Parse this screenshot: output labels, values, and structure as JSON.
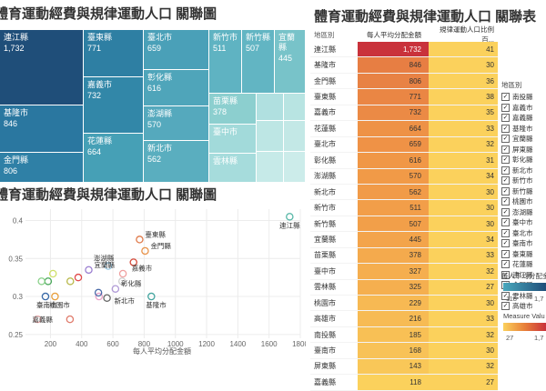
{
  "titles": {
    "treemap": "體育運動經費與規律運動人口 關聯圖",
    "scatter": "體育運動經費與規律運動人口 關聯圖",
    "table": "體育運動經費與規律運動人口 關聯表"
  },
  "treemap_cells": [
    {
      "name": "連江縣",
      "value": "1,732"
    },
    {
      "name": "臺東縣",
      "value": "771"
    },
    {
      "name": "臺北市",
      "value": "659"
    },
    {
      "name": "新竹市",
      "value": "511"
    },
    {
      "name": "新竹縣",
      "value": "507"
    },
    {
      "name": "宜蘭縣",
      "value": "445"
    },
    {
      "name": "嘉義市",
      "value": "732"
    },
    {
      "name": "彰化縣",
      "value": "616"
    },
    {
      "name": "基隆市",
      "value": "846"
    },
    {
      "name": "澎湖縣",
      "value": "570"
    },
    {
      "name": "苗栗縣",
      "value": "378"
    },
    {
      "name": "花蓮縣",
      "value": "664"
    },
    {
      "name": "臺中市",
      "value": ""
    },
    {
      "name": "新北市",
      "value": "562"
    },
    {
      "name": "雲林縣",
      "value": ""
    },
    {
      "name": "金門縣",
      "value": "806"
    }
  ],
  "table": {
    "headers": [
      "地區別",
      "每人平均分配金額",
      "規律運動人口比例百..."
    ],
    "rows": [
      {
        "region": "連江縣",
        "amount": "1,732",
        "ratio": "41"
      },
      {
        "region": "基隆市",
        "amount": "846",
        "ratio": "30"
      },
      {
        "region": "金門縣",
        "amount": "806",
        "ratio": "36"
      },
      {
        "region": "臺東縣",
        "amount": "771",
        "ratio": "38"
      },
      {
        "region": "嘉義市",
        "amount": "732",
        "ratio": "35"
      },
      {
        "region": "花蓮縣",
        "amount": "664",
        "ratio": "33"
      },
      {
        "region": "臺北市",
        "amount": "659",
        "ratio": "32"
      },
      {
        "region": "彰化縣",
        "amount": "616",
        "ratio": "31"
      },
      {
        "region": "澎湖縣",
        "amount": "570",
        "ratio": "34"
      },
      {
        "region": "新北市",
        "amount": "562",
        "ratio": "30"
      },
      {
        "region": "新竹市",
        "amount": "511",
        "ratio": "30"
      },
      {
        "region": "新竹縣",
        "amount": "507",
        "ratio": "30"
      },
      {
        "region": "宜蘭縣",
        "amount": "445",
        "ratio": "34"
      },
      {
        "region": "苗栗縣",
        "amount": "378",
        "ratio": "33"
      },
      {
        "region": "臺中市",
        "amount": "327",
        "ratio": "32"
      },
      {
        "region": "雲林縣",
        "amount": "325",
        "ratio": "27"
      },
      {
        "region": "桃園市",
        "amount": "229",
        "ratio": "30"
      },
      {
        "region": "高雄市",
        "amount": "216",
        "ratio": "33"
      },
      {
        "region": "南投縣",
        "amount": "185",
        "ratio": "32"
      },
      {
        "region": "臺南市",
        "amount": "168",
        "ratio": "30"
      },
      {
        "region": "屏東縣",
        "amount": "143",
        "ratio": "32"
      },
      {
        "region": "嘉義縣",
        "amount": "118",
        "ratio": "27"
      }
    ]
  },
  "filter": {
    "title": "地區別",
    "items": [
      "南投縣",
      "嘉義市",
      "嘉義縣",
      "基隆市",
      "宜蘭縣",
      "屏東縣",
      "彰化縣",
      "新北市",
      "新竹市",
      "新竹縣",
      "桃園市",
      "澎湖縣",
      "臺中市",
      "臺北市",
      "臺南市",
      "臺東縣",
      "花蓮縣",
      "連江縣",
      "金門縣",
      "雲林縣",
      "高雄市"
    ]
  },
  "legend": {
    "amount_title": "每人平均分配金額",
    "amount_min": "118",
    "amount_max": "1,7",
    "measure_title": "Measure Valu",
    "measure_min": "27",
    "measure_max": "1,7"
  },
  "chart_data": {
    "type": "scatter",
    "title": "體育運動經費與規律運動人口 關聯圖",
    "xlabel": "每人平均分配金額",
    "ylabel": "",
    "xticks": [
      "200",
      "400",
      "600",
      "800",
      "1000",
      "1200",
      "1400",
      "1600",
      "1800"
    ],
    "yticks": [
      "0.25",
      "0.3",
      "0.35",
      "0.4"
    ],
    "xlim": [
      40,
      1800
    ],
    "ylim": [
      0.245,
      0.415
    ],
    "points": [
      {
        "label": "連江縣",
        "x": 1732,
        "y": 0.405,
        "color": "#55b6a6"
      },
      {
        "label": "基隆市",
        "x": 846,
        "y": 0.3,
        "color": "#46a6a0"
      },
      {
        "label": "金門縣",
        "x": 806,
        "y": 0.36,
        "color": "#e8934a"
      },
      {
        "label": "臺東縣",
        "x": 771,
        "y": 0.375,
        "color": "#e07a4a"
      },
      {
        "label": "嘉義市",
        "x": 732,
        "y": 0.345,
        "color": "#d64a3a"
      },
      {
        "label": "花蓮縣",
        "x": 664,
        "y": 0.33,
        "color": "#f0a0a0"
      },
      {
        "label": "臺北市",
        "x": 659,
        "y": 0.32,
        "color": "#cfcfcf"
      },
      {
        "label": "彰化縣",
        "x": 616,
        "y": 0.31,
        "color": "#b09ad6"
      },
      {
        "label": "澎湖縣",
        "x": 570,
        "y": 0.34,
        "color": "#9ccbe6"
      },
      {
        "label": "新北市",
        "x": 562,
        "y": 0.298,
        "color": "#666666"
      },
      {
        "label": "新竹市",
        "x": 511,
        "y": 0.3,
        "color": "#e9a3c9"
      },
      {
        "label": "新竹縣",
        "x": 507,
        "y": 0.305,
        "color": "#4a6aa8"
      },
      {
        "label": "宜蘭縣",
        "x": 445,
        "y": 0.335,
        "color": "#9b7fd1"
      },
      {
        "label": "苗栗縣",
        "x": 378,
        "y": 0.325,
        "color": "#e04a4a"
      },
      {
        "label": "臺中市",
        "x": 327,
        "y": 0.32,
        "color": "#b8b84a"
      },
      {
        "label": "雲林縣",
        "x": 325,
        "y": 0.27,
        "color": "#e07a6a"
      },
      {
        "label": "桃園市",
        "x": 229,
        "y": 0.3,
        "color": "#e8a040"
      },
      {
        "label": "高雄市",
        "x": 216,
        "y": 0.33,
        "color": "#cfe06a"
      },
      {
        "label": "南投縣",
        "x": 185,
        "y": 0.32,
        "color": "#4aa85a"
      },
      {
        "label": "臺南市",
        "x": 168,
        "y": 0.3,
        "color": "#3a6aa8"
      },
      {
        "label": "屏東縣",
        "x": 143,
        "y": 0.32,
        "color": "#8ad18a"
      },
      {
        "label": "嘉義縣",
        "x": 118,
        "y": 0.27,
        "color": "#f0b0b0"
      }
    ],
    "labeled": [
      "連江縣",
      "基隆市",
      "金門縣",
      "臺東縣",
      "嘉義市",
      "宜蘭縣",
      "澎湖縣",
      "彰化縣",
      "新北市",
      "臺南市",
      "桃園市",
      "嘉義縣"
    ],
    "grid": true
  },
  "colors": {
    "treemap_dark": "#1f4e79",
    "treemap_light": "#c9ecec",
    "table_max": "#c9323b",
    "table_ratio": "#fbd15c"
  }
}
